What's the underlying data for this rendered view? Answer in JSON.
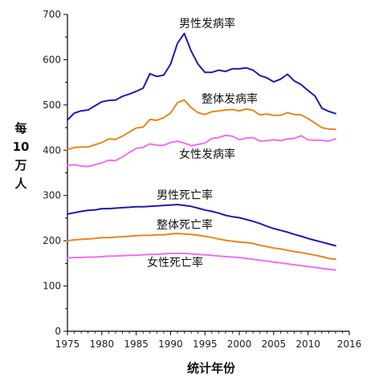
{
  "chart_data": {
    "type": "line",
    "title": "",
    "xlabel": "统计年份",
    "ylabel": [
      "每",
      "10",
      "万",
      "人"
    ],
    "xlim": [
      1975,
      2016
    ],
    "ylim": [
      0,
      700
    ],
    "x_ticks": [
      1975,
      1980,
      1985,
      1990,
      1995,
      2000,
      2005,
      2010,
      2016
    ],
    "y_ticks": [
      0,
      100,
      200,
      300,
      400,
      500,
      600,
      700
    ],
    "grid": false,
    "x": [
      1975,
      1976,
      1977,
      1978,
      1979,
      1980,
      1981,
      1982,
      1983,
      1984,
      1985,
      1986,
      1987,
      1988,
      1989,
      1990,
      1991,
      1992,
      1993,
      1994,
      1995,
      1996,
      1997,
      1998,
      1999,
      2000,
      2001,
      2002,
      2003,
      2004,
      2005,
      2006,
      2007,
      2008,
      2009,
      2010,
      2011,
      2012,
      2013,
      2014
    ],
    "series": [
      {
        "name": "男性发病率",
        "color": "#1c1caa",
        "values": [
          467,
          482,
          487,
          489,
          498,
          507,
          510,
          511,
          519,
          524,
          530,
          537,
          569,
          563,
          566,
          590,
          636,
          658,
          619,
          590,
          572,
          572,
          577,
          574,
          580,
          580,
          582,
          577,
          565,
          560,
          551,
          557,
          568,
          553,
          545,
          532,
          520,
          493,
          486,
          481
        ]
      },
      {
        "name": "整体发病率",
        "color": "#e8861c",
        "values": [
          401,
          406,
          407,
          407,
          412,
          417,
          425,
          424,
          431,
          440,
          449,
          451,
          468,
          466,
          472,
          482,
          505,
          511,
          494,
          483,
          479,
          485,
          487,
          489,
          490,
          487,
          491,
          488,
          478,
          480,
          477,
          477,
          483,
          479,
          478,
          470,
          460,
          450,
          447,
          446
        ]
      },
      {
        "name": "女性发病率",
        "color": "#ee70ee",
        "values": [
          366,
          368,
          365,
          364,
          368,
          372,
          378,
          377,
          385,
          395,
          404,
          406,
          414,
          411,
          411,
          417,
          420,
          416,
          410,
          413,
          416,
          426,
          428,
          433,
          431,
          423,
          427,
          428,
          420,
          421,
          423,
          421,
          425,
          426,
          432,
          423,
          422,
          422,
          420,
          425
        ]
      },
      {
        "name": "男性死亡率",
        "color": "#1c1caa",
        "values": [
          259,
          262,
          265,
          267,
          268,
          271,
          271,
          272,
          273,
          274,
          275,
          275,
          276,
          277,
          278,
          279,
          280,
          278,
          276,
          272,
          268,
          265,
          261,
          256,
          253,
          251,
          247,
          243,
          238,
          232,
          227,
          223,
          219,
          214,
          210,
          205,
          201,
          197,
          193,
          189
        ]
      },
      {
        "name": "整体死亡率",
        "color": "#e8861c",
        "values": [
          200,
          202,
          203,
          204,
          205,
          207,
          207,
          208,
          209,
          210,
          211,
          212,
          212,
          213,
          213,
          215,
          216,
          215,
          214,
          212,
          210,
          207,
          204,
          201,
          199,
          197,
          196,
          194,
          190,
          187,
          184,
          182,
          179,
          176,
          174,
          171,
          168,
          165,
          161,
          159
        ]
      },
      {
        "name": "女性死亡率",
        "color": "#ee70ee",
        "values": [
          162,
          163,
          163,
          164,
          164,
          165,
          166,
          166,
          167,
          168,
          168,
          169,
          170,
          170,
          171,
          172,
          172,
          172,
          171,
          170,
          169,
          168,
          166,
          165,
          164,
          163,
          161,
          159,
          157,
          155,
          153,
          151,
          149,
          147,
          145,
          143,
          141,
          139,
          137,
          135
        ]
      }
    ]
  }
}
